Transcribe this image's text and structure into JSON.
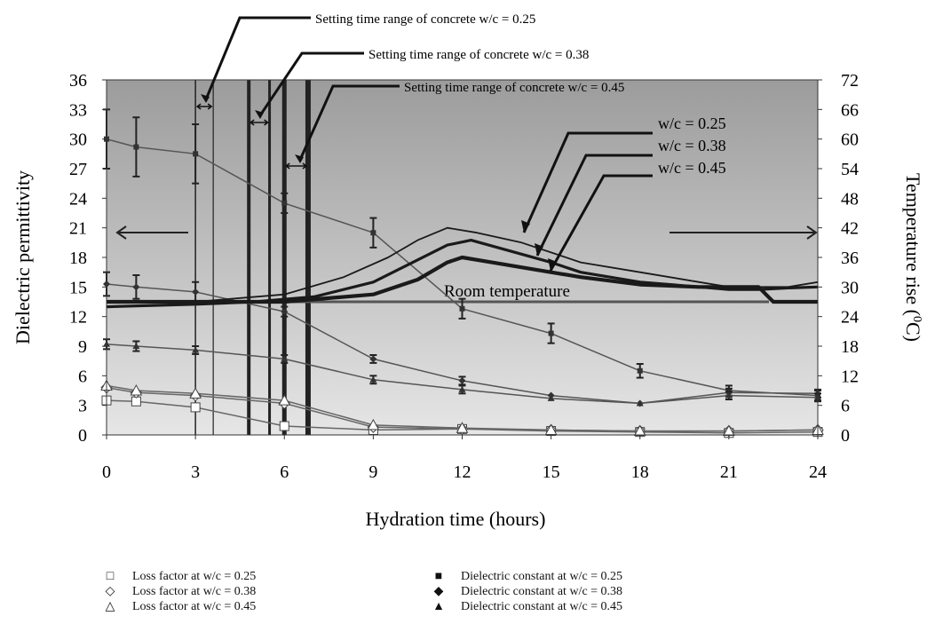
{
  "chart_data": {
    "type": "line",
    "xlabel": "Hydration time (hours)",
    "ylabel": "Dielectric permittivity",
    "y2label": "Temperature rise (",
    "y2label_unit": "0",
    "y2label_end": "C)",
    "xlim": [
      0,
      24
    ],
    "ylim": [
      0,
      36
    ],
    "y2lim": [
      0,
      72
    ],
    "x_ticks": [
      "0",
      "3",
      "6",
      "9",
      "12",
      "15",
      "18",
      "21",
      "24"
    ],
    "y_ticks": [
      "0",
      "3",
      "6",
      "9",
      "12",
      "15",
      "18",
      "21",
      "24",
      "27",
      "30",
      "33",
      "36"
    ],
    "y2_ticks": [
      "0",
      "6",
      "12",
      "18",
      "24",
      "30",
      "36",
      "42",
      "48",
      "54",
      "60",
      "66",
      "72"
    ],
    "setting_ranges": [
      {
        "label": "Setting time range of concrete w/c = 0.25",
        "start": 3.0,
        "end": 3.6
      },
      {
        "label": "Setting time range of concrete w/c = 0.38",
        "start": 4.8,
        "end": 5.5
      },
      {
        "label": "Setting time range of concrete w/c = 0.45",
        "start": 6.0,
        "end": 6.8
      }
    ],
    "room_temperature_label": "Room temperature",
    "room_temperature": 27,
    "temperature_series": [
      {
        "name": "w/c = 0.25",
        "x": [
          0,
          3,
          6,
          8,
          9.5,
          10.5,
          11.5,
          12.5,
          14,
          15,
          16,
          18,
          20,
          21,
          22,
          23,
          24
        ],
        "y": [
          27,
          27,
          28.5,
          32,
          36,
          39.5,
          42,
          41,
          39,
          37,
          35,
          33,
          31,
          30,
          30,
          30,
          31
        ]
      },
      {
        "name": "w/c = 0.38",
        "x": [
          0,
          3,
          5,
          7,
          9,
          10.5,
          11.5,
          12.3,
          13.5,
          15,
          16,
          18,
          20,
          21,
          22,
          23,
          24
        ],
        "y": [
          26,
          26.5,
          27,
          28,
          31,
          35.5,
          38.5,
          39.5,
          37.5,
          35,
          33,
          31,
          30,
          29.5,
          29.5,
          29.8,
          30
        ]
      },
      {
        "name": "w/c = 0.45",
        "x": [
          0,
          3,
          6,
          9,
          10.5,
          11.5,
          12,
          13,
          14.5,
          16,
          18,
          20,
          22,
          22.5,
          24
        ],
        "y": [
          27,
          27,
          27,
          28.5,
          31.5,
          35,
          36,
          35,
          33.5,
          32,
          30.5,
          30,
          30,
          27,
          27
        ]
      }
    ],
    "loss_factor_series": [
      {
        "name": "Loss factor at w/c = 0.25",
        "marker": "square",
        "x": [
          0,
          1,
          3,
          6,
          9,
          12,
          15,
          18,
          21,
          24
        ],
        "y": [
          3.5,
          3.4,
          2.8,
          0.9,
          0.5,
          0.6,
          0.4,
          0.3,
          0.2,
          0.3
        ]
      },
      {
        "name": "Loss factor at w/c = 0.38",
        "marker": "diamond",
        "x": [
          0,
          1,
          3,
          6,
          9,
          12,
          15,
          18,
          21,
          24
        ],
        "y": [
          4.8,
          4.3,
          4.0,
          3.2,
          0.8,
          0.6,
          0.5,
          0.4,
          0.4,
          0.5
        ]
      },
      {
        "name": "Loss factor at w/c = 0.45",
        "marker": "triangle",
        "x": [
          0,
          1,
          3,
          6,
          9,
          12,
          15,
          18,
          21,
          24
        ],
        "y": [
          5.0,
          4.5,
          4.2,
          3.5,
          1.0,
          0.7,
          0.5,
          0.4,
          0.4,
          0.5
        ]
      }
    ],
    "dielectric_series": [
      {
        "name": "Dielectric constant at w/c = 0.25",
        "marker": "square",
        "x": [
          0,
          1,
          3,
          6,
          9,
          12,
          15,
          18,
          21,
          24
        ],
        "y": [
          30,
          29.2,
          28.5,
          23.5,
          20.5,
          12.8,
          10.3,
          6.5,
          4.5,
          4.0
        ],
        "err": [
          3,
          3,
          3,
          1,
          1.5,
          1,
          1,
          0.7,
          0.5,
          0.5
        ]
      },
      {
        "name": "Dielectric constant at w/c = 0.38",
        "marker": "diamond",
        "x": [
          0,
          1,
          3,
          6,
          9,
          12,
          15,
          18,
          21,
          24
        ],
        "y": [
          15.3,
          15.0,
          14.5,
          12.5,
          7.7,
          5.5,
          4.0,
          3.2,
          4.3,
          4.2
        ],
        "err": [
          1.2,
          1.2,
          1,
          0.5,
          0.4,
          0.4,
          0.3,
          0.3,
          0.4,
          0.4
        ]
      },
      {
        "name": "Dielectric constant at w/c = 0.45",
        "marker": "triangle",
        "x": [
          0,
          1,
          3,
          6,
          9,
          12,
          15,
          18,
          21,
          24
        ],
        "y": [
          9.2,
          9.0,
          8.6,
          7.7,
          5.6,
          4.6,
          3.7,
          3.2,
          4.0,
          3.8
        ],
        "err": [
          0.5,
          0.5,
          0.4,
          0.4,
          0.4,
          0.4,
          0.3,
          0.3,
          0.4,
          0.4
        ]
      }
    ],
    "legend": [
      {
        "symbol": "□",
        "label": "Loss factor at w/c = 0.25"
      },
      {
        "symbol": "◇",
        "label": "Loss factor at w/c = 0.38"
      },
      {
        "symbol": "△",
        "label": "Loss factor at w/c = 0.45"
      },
      {
        "symbol": "■",
        "label": "Dielectric constant at w/c = 0.25"
      },
      {
        "symbol": "◆",
        "label": "Dielectric constant at w/c = 0.38"
      },
      {
        "symbol": "▲",
        "label": "Dielectric constant at w/c = 0.45"
      }
    ],
    "colors": {
      "plot_top": "#9c9c9c",
      "plot_bottom": "#e4e4e4",
      "line": "#555555",
      "temp_line": "#222222"
    }
  }
}
